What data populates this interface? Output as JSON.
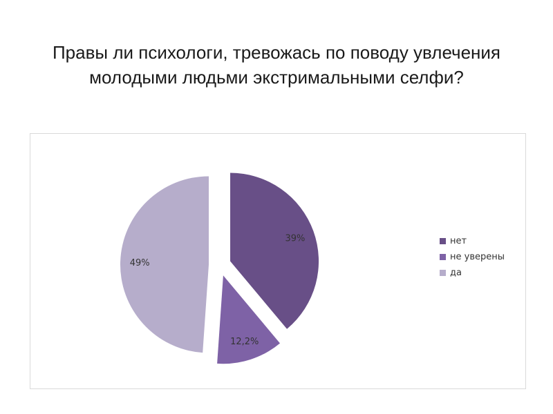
{
  "slide": {
    "title": "Правы ли психологи, тревожась по поводу увлечения молодыми людьми экстримальными селфи?"
  },
  "chart_data": {
    "type": "pie",
    "title": "",
    "categories": [
      "нет",
      "не уверены",
      "да"
    ],
    "values": [
      39,
      12.2,
      49
    ],
    "data_labels": [
      "39%",
      "12,2%",
      "49%"
    ],
    "colors": [
      "#684f87",
      "#7e62a6",
      "#b6adcb"
    ],
    "exploded": true,
    "legend_position": "right"
  }
}
